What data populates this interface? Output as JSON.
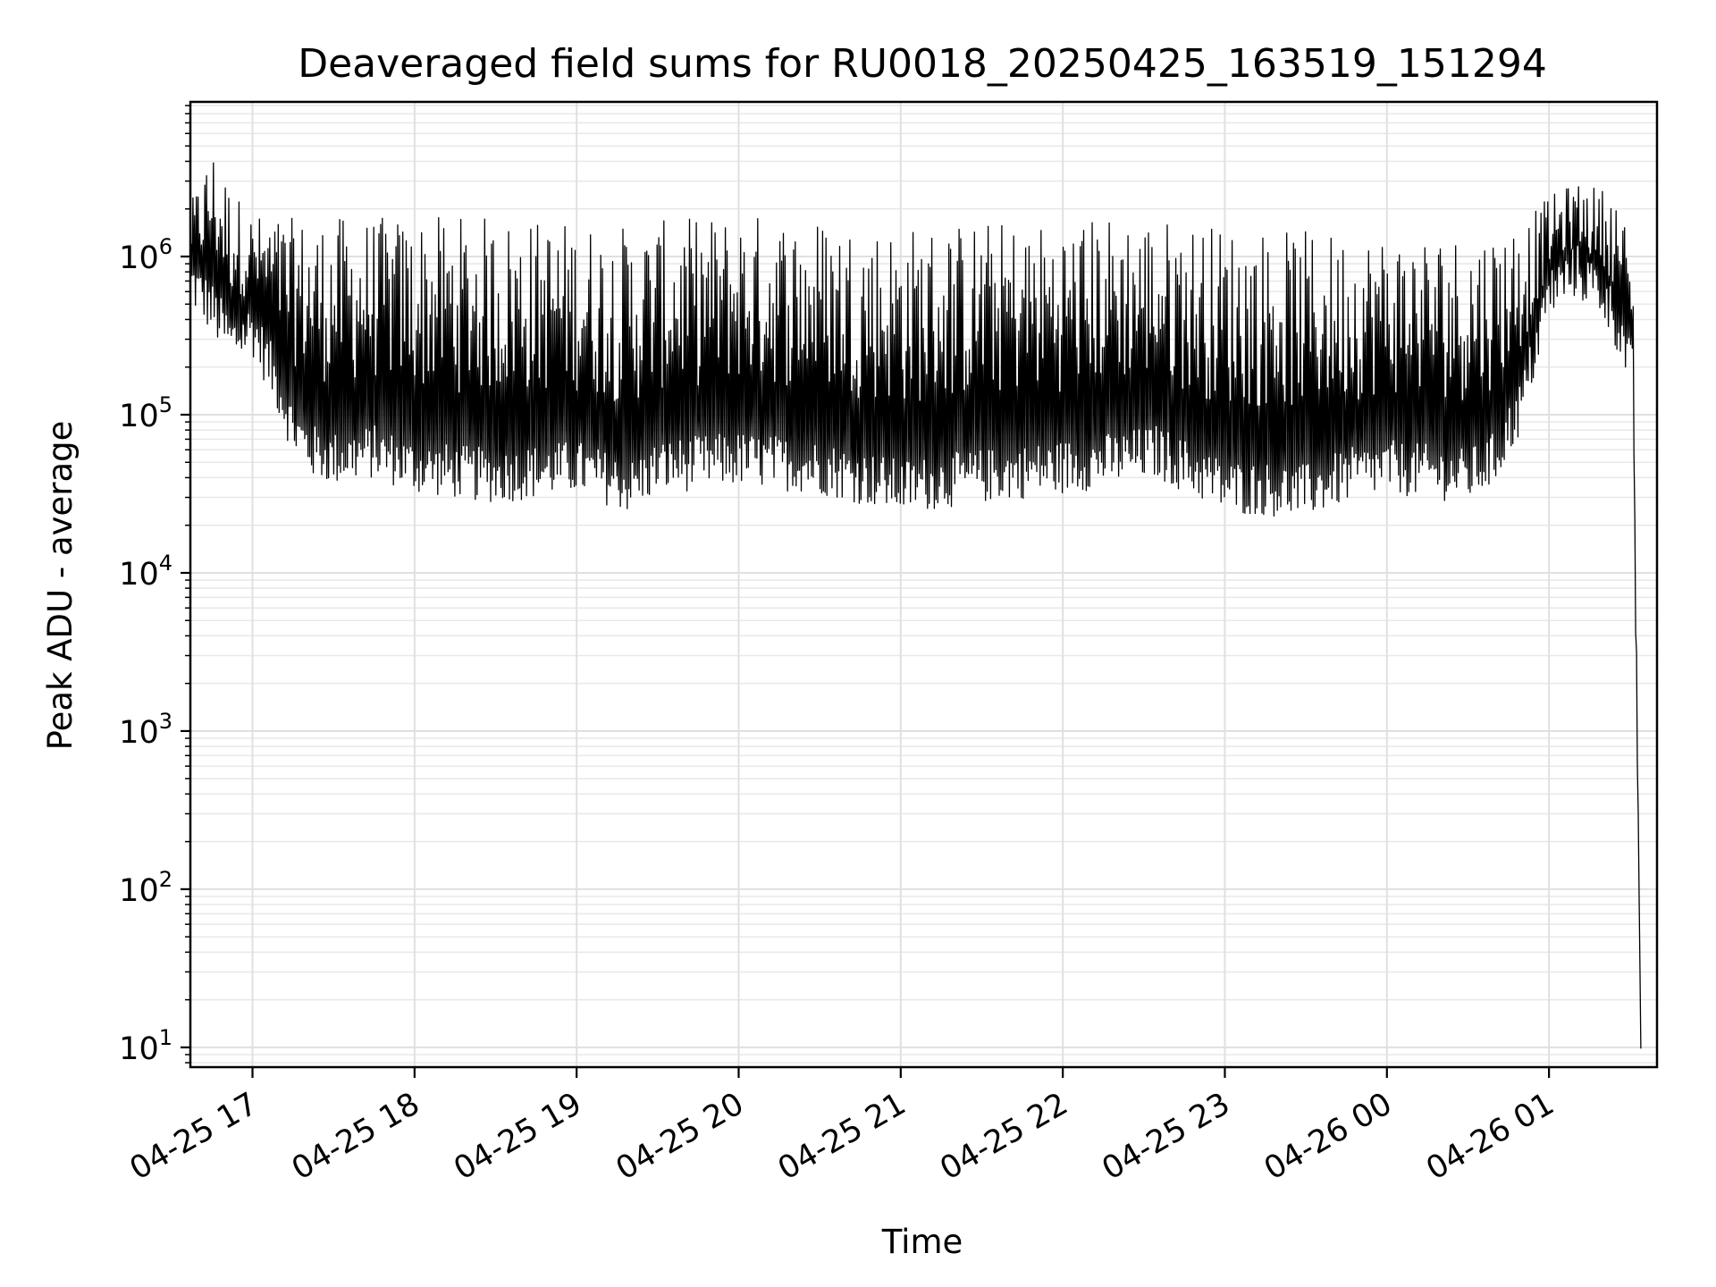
{
  "chart_data": {
    "type": "line",
    "title": "Deaveraged field sums for RU0018_20250425_163519_151294",
    "xlabel": "Time",
    "ylabel": "Peak ADU - average",
    "yscale": "log",
    "xlim": [
      "2025-04-25 16:37",
      "2025-04-26 01:40"
    ],
    "ylim": [
      7.5,
      9500000
    ],
    "grid": true,
    "grid_minor": true,
    "x_tick_labels": [
      "04-25 17",
      "04-25 18",
      "04-25 19",
      "04-25 20",
      "04-25 21",
      "04-25 22",
      "04-25 23",
      "04-26 00",
      "04-26 01"
    ],
    "x_ticks": [
      "2025-04-25 17:00",
      "2025-04-25 18:00",
      "2025-04-25 19:00",
      "2025-04-25 20:00",
      "2025-04-25 21:00",
      "2025-04-25 22:00",
      "2025-04-25 23:00",
      "2025-04-26 00:00",
      "2025-04-26 01:00"
    ],
    "y_ticks": [
      {
        "base": "10",
        "exp": "1",
        "value": 10
      },
      {
        "base": "10",
        "exp": "2",
        "value": 100
      },
      {
        "base": "10",
        "exp": "3",
        "value": 1000
      },
      {
        "base": "10",
        "exp": "4",
        "value": 10000
      },
      {
        "base": "10",
        "exp": "5",
        "value": 100000
      },
      {
        "base": "10",
        "exp": "6",
        "value": 1000000
      }
    ],
    "series": [
      {
        "color": "#000000",
        "x": [
          "2025-04-25 16:37",
          "2025-04-25 16:45",
          "2025-04-25 16:52",
          "2025-04-25 17:00",
          "2025-04-25 17:08",
          "2025-04-25 17:15",
          "2025-04-25 17:22",
          "2025-04-25 17:30",
          "2025-04-25 17:45",
          "2025-04-25 18:00",
          "2025-04-25 18:30",
          "2025-04-25 19:00",
          "2025-04-25 19:20",
          "2025-04-25 19:30",
          "2025-04-25 20:00",
          "2025-04-25 20:30",
          "2025-04-25 21:00",
          "2025-04-25 21:30",
          "2025-04-25 22:00",
          "2025-04-25 22:20",
          "2025-04-25 22:35",
          "2025-04-25 23:00",
          "2025-04-25 23:30",
          "2025-04-25 23:45",
          "2025-04-26 00:00",
          "2025-04-26 00:30",
          "2025-04-26 00:40",
          "2025-04-26 00:50",
          "2025-04-26 01:00",
          "2025-04-26 01:10",
          "2025-04-26 01:20",
          "2025-04-26 01:26",
          "2025-04-26 01:31",
          "2025-04-26 01:34"
        ],
        "low": [
          600000,
          400000,
          250000,
          300000,
          150000,
          70000,
          50000,
          45000,
          50000,
          40000,
          35000,
          40000,
          30000,
          40000,
          45000,
          40000,
          30000,
          35000,
          40000,
          45000,
          50000,
          30000,
          28000,
          35000,
          40000,
          35000,
          45000,
          100000,
          500000,
          700000,
          500000,
          300000,
          150000,
          10
        ],
        "high": [
          2000000,
          4500000,
          2500000,
          1700000,
          1600000,
          1500000,
          1500000,
          1500000,
          1500000,
          1500000,
          1500000,
          1400000,
          1300000,
          1400000,
          1600000,
          1500000,
          1300000,
          1400000,
          1400000,
          1600000,
          1500000,
          1300000,
          1200000,
          1200000,
          1200000,
          1200000,
          1300000,
          1500000,
          2200000,
          2800000,
          2500000,
          2000000,
          1000000,
          10
        ]
      }
    ]
  }
}
